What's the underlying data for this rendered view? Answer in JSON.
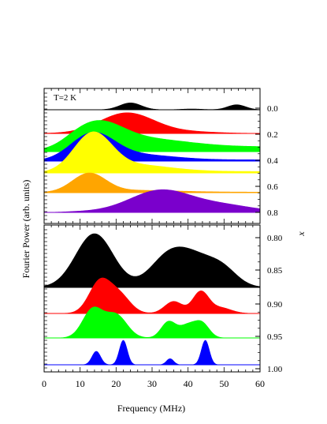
{
  "chart_data": {
    "type": "area",
    "xlabel": "Frequency (MHz)",
    "ylabel": "Fourier Power (arb. units)",
    "right_axis_label": "x",
    "annotation": "T=2 K",
    "xlim": [
      0,
      60
    ],
    "xticks": [
      "0",
      "10",
      "20",
      "30",
      "40",
      "50",
      "60"
    ],
    "grid": false,
    "legend": "none",
    "panels": [
      {
        "name": "top",
        "right_ticks": [
          "0.0",
          "0.2",
          "0.4",
          "0.6",
          "0.8"
        ],
        "series": [
          {
            "x_label": "0.0",
            "color": "#000000",
            "peaks": [
              [
                24,
                0.62,
                3.0
              ],
              [
                41,
                0.07,
                3.0
              ],
              [
                53.5,
                0.45,
                2.5
              ]
            ]
          },
          {
            "x_label": "0.1",
            "color": "#ff0000",
            "peaks": [
              [
                23,
                1.0,
                7.5
              ],
              [
                40,
                0.08,
                8
              ]
            ]
          },
          {
            "x_label": "0.2",
            "color": "#00ff00",
            "peaks": [
              [
                14.5,
                1.0,
                7.0
              ],
              [
                28,
                0.35,
                12
              ]
            ],
            "tail": 0.22
          },
          {
            "x_label": "0.3",
            "color": "#0000ff",
            "peaks": [
              [
                13.5,
                1.0,
                6.0
              ],
              [
                26,
                0.2,
                10
              ]
            ],
            "tail": 0.05
          },
          {
            "x_label": "0.4",
            "color": "#ffff00",
            "peaks": [
              [
                13.5,
                1.0,
                5.2
              ],
              [
                25,
                0.18,
                10
              ]
            ],
            "tail": 0.04
          },
          {
            "x_label": "0.6",
            "color": "#ffa500",
            "peaks": [
              [
                12.5,
                1.0,
                4.6
              ],
              [
                25,
                0.1,
                12
              ]
            ],
            "tail": 0.03
          },
          {
            "x_label": "0.8",
            "color": "#7a00cc",
            "peaks": [
              [
                32.5,
                1.0,
                8.5
              ],
              [
                50,
                0.28,
                8
              ]
            ],
            "tail": 0.04
          }
        ]
      },
      {
        "name": "bottom",
        "right_ticks": [
          "0.80",
          "0.85",
          "0.90",
          "0.95",
          "1.00"
        ],
        "series": [
          {
            "x_label": "0.85",
            "color": "#000000",
            "peaks": [
              [
                14,
                1.0,
                5.2
              ],
              [
                34,
                0.45,
                5
              ],
              [
                42,
                0.53,
                6
              ],
              [
                50,
                0.22,
                4
              ]
            ]
          },
          {
            "x_label": "0.90",
            "color": "#ff0000",
            "peaks": [
              [
                15.5,
                1.0,
                3.0
              ],
              [
                21,
                0.55,
                3
              ],
              [
                36,
                0.38,
                2.5
              ],
              [
                43.5,
                0.68,
                2.2
              ],
              [
                49,
                0.18,
                3
              ]
            ]
          },
          {
            "x_label": "0.95",
            "color": "#00ff00",
            "peaks": [
              [
                13.5,
                1.0,
                2.8
              ],
              [
                20,
                0.8,
                3.0
              ],
              [
                34.5,
                0.55,
                2.0
              ],
              [
                40,
                0.45,
                2.5
              ],
              [
                44,
                0.45,
                2.0
              ]
            ]
          },
          {
            "x_label": "1.00",
            "color": "#0000ff",
            "peaks": [
              [
                14.5,
                0.55,
                1.2
              ],
              [
                22,
                1.0,
                1.1
              ],
              [
                35,
                0.25,
                1.0
              ],
              [
                44.8,
                1.0,
                1.1
              ]
            ]
          }
        ]
      }
    ]
  }
}
